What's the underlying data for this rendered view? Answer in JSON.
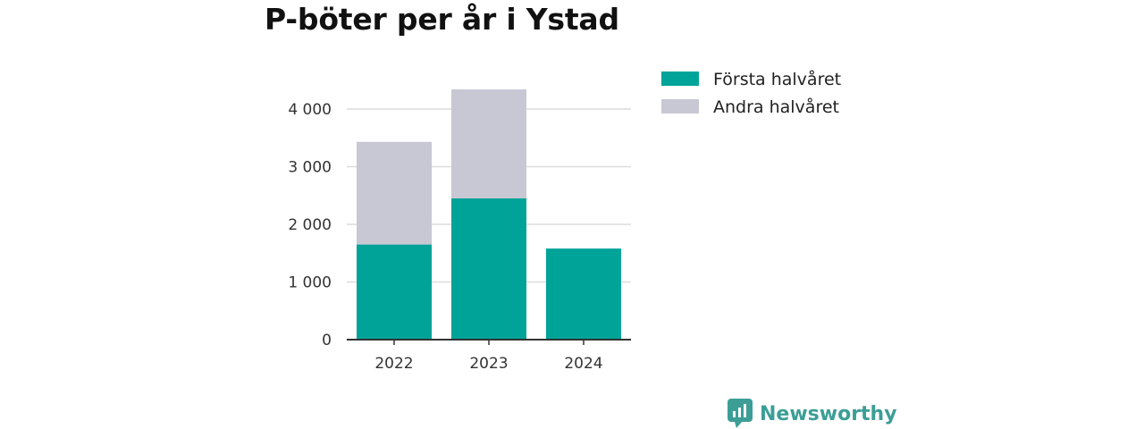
{
  "chart_data": {
    "type": "bar",
    "stacked": true,
    "title": "P-böter per år i Ystad",
    "categories": [
      "2022",
      "2023",
      "2024"
    ],
    "series": [
      {
        "name": "Första halvåret",
        "color": "#00a398",
        "values": [
          1650,
          2450,
          1580
        ]
      },
      {
        "name": "Andra halvåret",
        "color": "#c8c7d4",
        "values": [
          1780,
          1890,
          0
        ]
      }
    ],
    "yticks": [
      0,
      1000,
      2000,
      3000,
      4000
    ],
    "ytick_labels": [
      "0",
      "1 000",
      "2 000",
      "3 000",
      "4 000"
    ],
    "ylim": [
      0,
      4500
    ],
    "grid": true,
    "legend_position": "top-right"
  },
  "branding": {
    "logo_text": "Newsworthy",
    "logo_icon": "newsworthy-bar-icon"
  }
}
